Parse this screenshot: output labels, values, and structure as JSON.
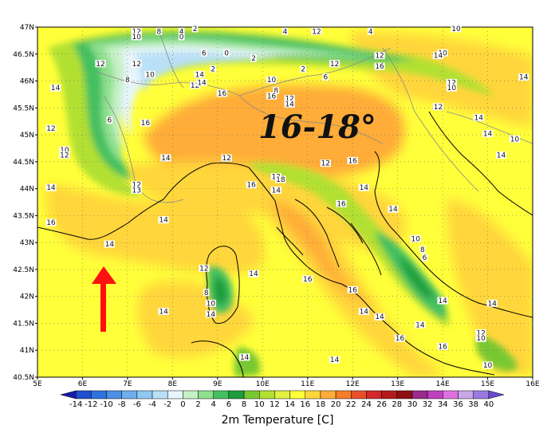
{
  "title": "2m Temperature [C]",
  "annotation": "16-18°",
  "lat_labels": [
    "47N",
    "46.5N",
    "46N",
    "45.5N",
    "45N",
    "44.5N",
    "44N",
    "43.5N",
    "43N",
    "42.5N",
    "42N",
    "41.5N",
    "41N",
    "40.5N"
  ],
  "lon_labels": [
    "5E",
    "6E",
    "7E",
    "8E",
    "9E",
    "10E",
    "11E",
    "12E",
    "13E",
    "14E",
    "15E",
    "16E"
  ],
  "colorbar": {
    "ticks": [
      "-14",
      "-12",
      "-10",
      "-8",
      "-6",
      "-4",
      "-2",
      "0",
      "2",
      "4",
      "6",
      "8",
      "10",
      "12",
      "14",
      "16",
      "18",
      "20",
      "22",
      "24",
      "26",
      "28",
      "30",
      "32",
      "34",
      "36",
      "38",
      "40"
    ],
    "colors": [
      "#1a1aa8",
      "#1f4fd0",
      "#2e72de",
      "#4a90e6",
      "#6eaeee",
      "#8fc8f2",
      "#b9e0f7",
      "#e6f5fb",
      "#c6f0c6",
      "#8fe08f",
      "#45c060",
      "#1f9d3a",
      "#78c832",
      "#b2e032",
      "#e2f040",
      "#ffff3a",
      "#ffd63a",
      "#ffac38",
      "#f57e26",
      "#e8502a",
      "#d4282a",
      "#b41a1a",
      "#8c1010",
      "#9a2a8c",
      "#c040c0",
      "#e070e0",
      "#c8a8e8",
      "#9a7ae0",
      "#6a4ad0"
    ]
  },
  "value_labels": [
    {
      "t": "12",
      "lon": 7.2,
      "lat": 46.9
    },
    {
      "t": "10",
      "lon": 7.2,
      "lat": 46.8
    },
    {
      "t": "8",
      "lon": 7.7,
      "lat": 46.9
    },
    {
      "t": "4",
      "lon": 8.2,
      "lat": 46.9
    },
    {
      "t": "0",
      "lon": 8.2,
      "lat": 46.8
    },
    {
      "t": "2",
      "lon": 8.5,
      "lat": 46.95
    },
    {
      "t": "6",
      "lon": 8.7,
      "lat": 46.5
    },
    {
      "t": "2",
      "lon": 8.9,
      "lat": 46.2
    },
    {
      "t": "0",
      "lon": 9.2,
      "lat": 46.5
    },
    {
      "t": "2",
      "lon": 9.8,
      "lat": 46.4
    },
    {
      "t": "4",
      "lon": 10.5,
      "lat": 46.9
    },
    {
      "t": "2",
      "lon": 10.9,
      "lat": 46.2
    },
    {
      "t": "12",
      "lon": 6.4,
      "lat": 46.3
    },
    {
      "t": "8",
      "lon": 7.0,
      "lat": 46.0
    },
    {
      "t": "12",
      "lon": 7.2,
      "lat": 46.3
    },
    {
      "t": "10",
      "lon": 7.5,
      "lat": 46.1
    },
    {
      "t": "14",
      "lon": 8.6,
      "lat": 46.1
    },
    {
      "t": "12",
      "lon": 8.5,
      "lat": 45.9
    },
    {
      "t": "16",
      "lon": 9.1,
      "lat": 45.75
    },
    {
      "t": "14",
      "lon": 8.65,
      "lat": 45.95
    },
    {
      "t": "10",
      "lon": 10.2,
      "lat": 46.0
    },
    {
      "t": "8",
      "lon": 10.3,
      "lat": 45.8
    },
    {
      "t": "16",
      "lon": 10.2,
      "lat": 45.7
    },
    {
      "t": "12",
      "lon": 10.6,
      "lat": 45.65
    },
    {
      "t": "14",
      "lon": 10.6,
      "lat": 45.55
    },
    {
      "t": "12",
      "lon": 11.6,
      "lat": 46.3
    },
    {
      "t": "6",
      "lon": 11.4,
      "lat": 46.05
    },
    {
      "t": "12",
      "lon": 12.6,
      "lat": 46.45
    },
    {
      "t": "16",
      "lon": 12.6,
      "lat": 46.25
    },
    {
      "t": "4",
      "lon": 12.4,
      "lat": 46.9
    },
    {
      "t": "12",
      "lon": 11.2,
      "lat": 46.9
    },
    {
      "t": "10",
      "lon": 14.3,
      "lat": 46.95
    },
    {
      "t": "10",
      "lon": 14.0,
      "lat": 46.5
    },
    {
      "t": "14",
      "lon": 13.9,
      "lat": 46.45
    },
    {
      "t": "14",
      "lon": 15.8,
      "lat": 46.05
    },
    {
      "t": "12",
      "lon": 14.2,
      "lat": 45.95
    },
    {
      "t": "10",
      "lon": 14.2,
      "lat": 45.85
    },
    {
      "t": "12",
      "lon": 13.9,
      "lat": 45.5
    },
    {
      "t": "14",
      "lon": 14.8,
      "lat": 45.3
    },
    {
      "t": "14",
      "lon": 15.0,
      "lat": 45.0
    },
    {
      "t": "10",
      "lon": 15.6,
      "lat": 44.9
    },
    {
      "t": "14",
      "lon": 15.3,
      "lat": 44.6
    },
    {
      "t": "14",
      "lon": 5.4,
      "lat": 45.85
    },
    {
      "t": "12",
      "lon": 5.3,
      "lat": 45.1
    },
    {
      "t": "10",
      "lon": 5.6,
      "lat": 44.7
    },
    {
      "t": "12",
      "lon": 5.6,
      "lat": 44.6
    },
    {
      "t": "14",
      "lon": 5.3,
      "lat": 44.0
    },
    {
      "t": "16",
      "lon": 5.3,
      "lat": 43.35
    },
    {
      "t": "6",
      "lon": 6.6,
      "lat": 45.25
    },
    {
      "t": "16",
      "lon": 7.4,
      "lat": 45.2
    },
    {
      "t": "14",
      "lon": 7.85,
      "lat": 44.55
    },
    {
      "t": "12",
      "lon": 7.2,
      "lat": 44.05
    },
    {
      "t": "13",
      "lon": 7.2,
      "lat": 43.95
    },
    {
      "t": "12",
      "lon": 9.2,
      "lat": 44.55
    },
    {
      "t": "16",
      "lon": 9.75,
      "lat": 44.05
    },
    {
      "t": "14",
      "lon": 10.3,
      "lat": 43.95
    },
    {
      "t": "12",
      "lon": 10.3,
      "lat": 44.2
    },
    {
      "t": "12",
      "lon": 11.4,
      "lat": 44.45
    },
    {
      "t": "18",
      "lon": 10.4,
      "lat": 44.15
    },
    {
      "t": "16",
      "lon": 12.0,
      "lat": 44.5
    },
    {
      "t": "14",
      "lon": 12.25,
      "lat": 44.0
    },
    {
      "t": "16",
      "lon": 11.75,
      "lat": 43.7
    },
    {
      "t": "14",
      "lon": 12.9,
      "lat": 43.6
    },
    {
      "t": "14",
      "lon": 6.6,
      "lat": 42.95
    },
    {
      "t": "14",
      "lon": 7.8,
      "lat": 43.4
    },
    {
      "t": "14",
      "lon": 7.8,
      "lat": 41.7
    },
    {
      "t": "10",
      "lon": 13.4,
      "lat": 43.05
    },
    {
      "t": "8",
      "lon": 13.55,
      "lat": 42.85
    },
    {
      "t": "6",
      "lon": 13.6,
      "lat": 42.7
    },
    {
      "t": "12",
      "lon": 8.7,
      "lat": 42.5
    },
    {
      "t": "14",
      "lon": 9.8,
      "lat": 42.4
    },
    {
      "t": "8",
      "lon": 8.75,
      "lat": 42.05
    },
    {
      "t": "10",
      "lon": 8.85,
      "lat": 41.85
    },
    {
      "t": "14",
      "lon": 8.85,
      "lat": 41.65
    },
    {
      "t": "16",
      "lon": 11.0,
      "lat": 42.3
    },
    {
      "t": "16",
      "lon": 12.0,
      "lat": 42.1
    },
    {
      "t": "14",
      "lon": 12.25,
      "lat": 41.7
    },
    {
      "t": "14",
      "lon": 12.6,
      "lat": 41.6
    },
    {
      "t": "14",
      "lon": 14.0,
      "lat": 41.9
    },
    {
      "t": "14",
      "lon": 15.1,
      "lat": 41.85
    },
    {
      "t": "14",
      "lon": 13.5,
      "lat": 41.45
    },
    {
      "t": "12",
      "lon": 14.85,
      "lat": 41.3
    },
    {
      "t": "10",
      "lon": 14.85,
      "lat": 41.2
    },
    {
      "t": "16",
      "lon": 13.05,
      "lat": 41.2
    },
    {
      "t": "16",
      "lon": 14.0,
      "lat": 41.05
    },
    {
      "t": "10",
      "lon": 15.0,
      "lat": 40.7
    },
    {
      "t": "14",
      "lon": 9.6,
      "lat": 40.85
    },
    {
      "t": "14",
      "lon": 11.6,
      "lat": 40.8
    }
  ]
}
